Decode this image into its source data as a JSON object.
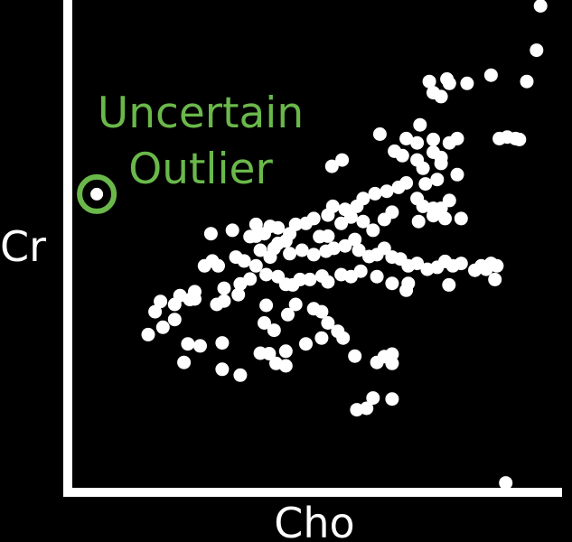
{
  "chart_data": {
    "type": "scatter",
    "title": "",
    "xlabel": "Cho",
    "ylabel": "Cr",
    "xlim": [
      0,
      100
    ],
    "ylim": [
      0,
      100
    ],
    "grid": false,
    "legend": "none",
    "colors": {
      "background": "#000000",
      "points": "#ffffff",
      "axes": "#ffffff",
      "outlier": "#6ab84a"
    },
    "annotation": {
      "lines": [
        "Uncertain",
        "Outlier"
      ]
    },
    "outlier": {
      "x": 5,
      "y": 60.2
    },
    "points": [
      [
        95.6,
        98.8
      ],
      [
        94.8,
        89.7
      ],
      [
        92.8,
        83.3
      ],
      [
        85.5,
        84.6
      ],
      [
        80.6,
        82.9
      ],
      [
        77.0,
        82.9
      ],
      [
        76.5,
        83.8
      ],
      [
        72.9,
        83.3
      ],
      [
        73.7,
        81.0
      ],
      [
        75.3,
        80.2
      ],
      [
        62.8,
        72.5
      ],
      [
        68.2,
        71.6
      ],
      [
        70.4,
        70.7
      ],
      [
        73.7,
        71.4
      ],
      [
        77.0,
        70.7
      ],
      [
        78.6,
        71.6
      ],
      [
        87.2,
        71.6
      ],
      [
        88.8,
        71.9
      ],
      [
        90.5,
        71.6
      ],
      [
        91.3,
        71.4
      ],
      [
        55.1,
        67.2
      ],
      [
        53.0,
        65.9
      ],
      [
        65.8,
        69.0
      ],
      [
        67.4,
        68.1
      ],
      [
        70.4,
        67.2
      ],
      [
        73.7,
        68.8
      ],
      [
        75.3,
        66.5
      ],
      [
        75.3,
        67.7
      ],
      [
        71.6,
        65.5
      ],
      [
        74.5,
        63.2
      ],
      [
        78.6,
        64.2
      ],
      [
        72.1,
        62.3
      ],
      [
        68.2,
        62.5
      ],
      [
        66.6,
        61.6
      ],
      [
        64.2,
        60.8
      ],
      [
        61.8,
        60.3
      ],
      [
        59.4,
        59.3
      ],
      [
        58.1,
        57.7
      ],
      [
        55.7,
        57.1
      ],
      [
        53.2,
        57.7
      ],
      [
        52.2,
        55.9
      ],
      [
        70.4,
        59.3
      ],
      [
        71.6,
        57.7
      ],
      [
        73.7,
        57.3
      ],
      [
        77.0,
        58.9
      ],
      [
        75.3,
        57.3
      ],
      [
        73.7,
        55.8
      ],
      [
        76.1,
        55.2
      ],
      [
        79.4,
        55.2
      ],
      [
        70.7,
        54.6
      ],
      [
        65.3,
        56.5
      ],
      [
        63.7,
        55.0
      ],
      [
        61.4,
        52.8
      ],
      [
        59.4,
        54.6
      ],
      [
        56.9,
        55.5
      ],
      [
        54.9,
        54.2
      ],
      [
        52.2,
        51.6
      ],
      [
        50.5,
        51.5
      ],
      [
        49.3,
        55.2
      ],
      [
        47.7,
        54.2
      ],
      [
        45.6,
        54.0
      ],
      [
        44.4,
        52.1
      ],
      [
        42.0,
        53.3
      ],
      [
        40.4,
        53.6
      ],
      [
        37.5,
        54.0
      ],
      [
        39.2,
        52.1
      ],
      [
        37.5,
        51.6
      ],
      [
        36.3,
        51.5
      ],
      [
        42.0,
        50.1
      ],
      [
        43.6,
        50.6
      ],
      [
        41.2,
        49.1
      ],
      [
        38.4,
        48.7
      ],
      [
        40.4,
        47.3
      ],
      [
        37.5,
        45.5
      ],
      [
        35.1,
        46.5
      ],
      [
        33.4,
        47.3
      ],
      [
        29.8,
        45.5
      ],
      [
        28.6,
        46.5
      ],
      [
        27.0,
        45.5
      ],
      [
        44.4,
        48.0
      ],
      [
        46.9,
        48.7
      ],
      [
        49.3,
        47.8
      ],
      [
        51.8,
        48.5
      ],
      [
        53.4,
        49.1
      ],
      [
        55.7,
        49.6
      ],
      [
        57.7,
        50.9
      ],
      [
        58.5,
        48.7
      ],
      [
        60.6,
        47.4
      ],
      [
        62.2,
        47.8
      ],
      [
        63.7,
        49.1
      ],
      [
        65.3,
        47.3
      ],
      [
        67.0,
        46.9
      ],
      [
        68.6,
        45.5
      ],
      [
        70.4,
        46.0
      ],
      [
        72.5,
        44.8
      ],
      [
        74.5,
        45.2
      ],
      [
        76.1,
        46.4
      ],
      [
        77.7,
        45.5
      ],
      [
        79.4,
        46.0
      ],
      [
        82.2,
        44.6
      ],
      [
        83.5,
        45.5
      ],
      [
        84.5,
        44.8
      ],
      [
        85.5,
        46.0
      ],
      [
        86.7,
        45.5
      ],
      [
        86.3,
        42.7
      ],
      [
        76.9,
        41.6
      ],
      [
        68.2,
        40.5
      ],
      [
        68.6,
        41.9
      ],
      [
        65.3,
        41.9
      ],
      [
        62.2,
        43.3
      ],
      [
        58.9,
        44.4
      ],
      [
        56.9,
        43.3
      ],
      [
        54.9,
        43.7
      ],
      [
        52.2,
        42.2
      ],
      [
        51.0,
        43.4
      ],
      [
        48.5,
        42.7
      ],
      [
        46.5,
        42.7
      ],
      [
        45.0,
        41.6
      ],
      [
        43.6,
        41.7
      ],
      [
        42.0,
        43.3
      ],
      [
        39.6,
        43.7
      ],
      [
        36.3,
        42.8
      ],
      [
        34.3,
        41.8
      ],
      [
        31.0,
        40.9
      ],
      [
        33.9,
        39.6
      ],
      [
        31.0,
        38.3
      ],
      [
        29.5,
        37.6
      ],
      [
        25.0,
        38.7
      ],
      [
        25.0,
        40.2
      ],
      [
        24.0,
        38.6
      ],
      [
        22.0,
        39.4
      ],
      [
        18.0,
        38.2
      ],
      [
        16.9,
        36.1
      ],
      [
        20.9,
        34.5
      ],
      [
        18.5,
        32.9
      ],
      [
        15.5,
        31.4
      ],
      [
        45.6,
        37.6
      ],
      [
        49.3,
        36.7
      ],
      [
        50.9,
        36.1
      ],
      [
        52.2,
        33.8
      ],
      [
        54.2,
        32.1
      ],
      [
        55.3,
        30.7
      ],
      [
        50.9,
        30.7
      ],
      [
        47.7,
        29.5
      ],
      [
        43.6,
        28.0
      ],
      [
        38.4,
        27.6
      ],
      [
        30.6,
        29.7
      ],
      [
        26.1,
        29.1
      ],
      [
        23.6,
        29.5
      ],
      [
        22.8,
        25.7
      ],
      [
        30.6,
        24.3
      ],
      [
        34.3,
        23.1
      ],
      [
        43.6,
        25.0
      ],
      [
        40.2,
        27.5
      ],
      [
        41.6,
        25.5
      ],
      [
        57.7,
        27.0
      ],
      [
        62.2,
        25.7
      ],
      [
        63.7,
        26.9
      ],
      [
        65.3,
        27.4
      ],
      [
        65.3,
        25.5
      ],
      [
        61.4,
        18.4
      ],
      [
        65.3,
        18.2
      ],
      [
        60.1,
        16.3
      ],
      [
        58.1,
        16.0
      ],
      [
        41.2,
        32.3
      ],
      [
        39.2,
        33.8
      ],
      [
        44.0,
        35.5
      ],
      [
        39.6,
        37.4
      ],
      [
        20.9,
        37.6
      ],
      [
        32.7,
        52.8
      ],
      [
        28.3,
        52.1
      ],
      [
        71.0,
        74.4
      ],
      [
        88.5,
        1.0
      ]
    ]
  }
}
